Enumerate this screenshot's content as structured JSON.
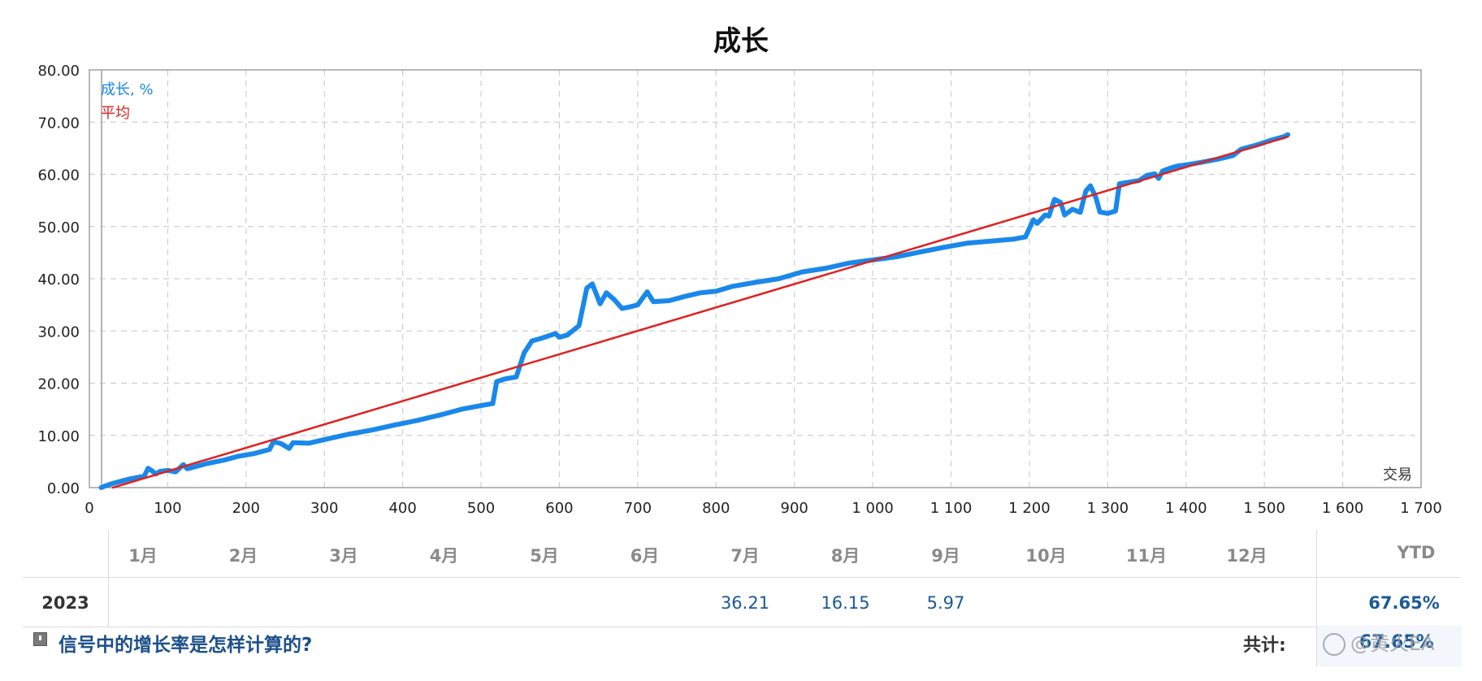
{
  "chart_data": {
    "type": "line",
    "title": "成长",
    "xlabel": "交易",
    "ylabel": "",
    "xlim": [
      0,
      1700
    ],
    "ylim": [
      0,
      80
    ],
    "x_ticks": [
      0,
      100,
      200,
      300,
      400,
      500,
      600,
      700,
      800,
      900,
      1000,
      1100,
      1200,
      1300,
      1400,
      1500,
      1600,
      1700
    ],
    "x_tick_labels": [
      "0",
      "100",
      "200",
      "300",
      "400",
      "500",
      "600",
      "700",
      "800",
      "900",
      "1 000",
      "1 100",
      "1 200",
      "1 300",
      "1 400",
      "1 500",
      "1 600",
      "1 700"
    ],
    "y_ticks": [
      0,
      10,
      20,
      30,
      40,
      50,
      60,
      70,
      80
    ],
    "y_tick_labels": [
      "0.00",
      "10.00",
      "20.00",
      "30.00",
      "40.00",
      "50.00",
      "60.00",
      "70.00",
      "80.00"
    ],
    "grid": true,
    "legend_position": "top-left",
    "series": [
      {
        "name": "成长, %",
        "color": "#1a88ea",
        "points": [
          [
            15,
            0
          ],
          [
            20,
            0.3
          ],
          [
            30,
            0.8
          ],
          [
            40,
            1.2
          ],
          [
            50,
            1.6
          ],
          [
            60,
            1.9
          ],
          [
            70,
            2.2
          ],
          [
            75,
            3.7
          ],
          [
            80,
            3.2
          ],
          [
            85,
            2.6
          ],
          [
            90,
            3.1
          ],
          [
            100,
            3.3
          ],
          [
            110,
            3.0
          ],
          [
            115,
            3.7
          ],
          [
            120,
            4.4
          ],
          [
            125,
            3.6
          ],
          [
            135,
            4.0
          ],
          [
            150,
            4.6
          ],
          [
            170,
            5.2
          ],
          [
            190,
            6.0
          ],
          [
            210,
            6.5
          ],
          [
            230,
            7.3
          ],
          [
            235,
            8.8
          ],
          [
            245,
            8.4
          ],
          [
            255,
            7.5
          ],
          [
            260,
            8.6
          ],
          [
            280,
            8.5
          ],
          [
            300,
            9.2
          ],
          [
            330,
            10.2
          ],
          [
            360,
            11.0
          ],
          [
            390,
            12.0
          ],
          [
            420,
            12.9
          ],
          [
            450,
            14.0
          ],
          [
            475,
            15.0
          ],
          [
            500,
            15.7
          ],
          [
            515,
            16.1
          ],
          [
            520,
            20.3
          ],
          [
            530,
            20.8
          ],
          [
            545,
            21.2
          ],
          [
            555,
            25.8
          ],
          [
            565,
            28.1
          ],
          [
            575,
            28.5
          ],
          [
            595,
            29.5
          ],
          [
            600,
            28.8
          ],
          [
            610,
            29.2
          ],
          [
            625,
            31.0
          ],
          [
            635,
            38.2
          ],
          [
            642,
            39.0
          ],
          [
            652,
            35.2
          ],
          [
            660,
            37.3
          ],
          [
            670,
            36.0
          ],
          [
            680,
            34.3
          ],
          [
            690,
            34.6
          ],
          [
            700,
            35.0
          ],
          [
            712,
            37.5
          ],
          [
            720,
            35.6
          ],
          [
            740,
            35.8
          ],
          [
            760,
            36.6
          ],
          [
            780,
            37.3
          ],
          [
            800,
            37.6
          ],
          [
            820,
            38.5
          ],
          [
            850,
            39.3
          ],
          [
            880,
            40.0
          ],
          [
            910,
            41.3
          ],
          [
            940,
            42.0
          ],
          [
            970,
            43.0
          ],
          [
            1000,
            43.6
          ],
          [
            1030,
            44.2
          ],
          [
            1060,
            45.1
          ],
          [
            1090,
            46.0
          ],
          [
            1120,
            46.8
          ],
          [
            1150,
            47.2
          ],
          [
            1180,
            47.6
          ],
          [
            1195,
            48.0
          ],
          [
            1205,
            51.3
          ],
          [
            1210,
            50.6
          ],
          [
            1220,
            52.2
          ],
          [
            1225,
            52.0
          ],
          [
            1232,
            55.2
          ],
          [
            1240,
            54.6
          ],
          [
            1245,
            52.2
          ],
          [
            1255,
            53.3
          ],
          [
            1265,
            52.7
          ],
          [
            1272,
            56.8
          ],
          [
            1278,
            57.8
          ],
          [
            1285,
            55.5
          ],
          [
            1290,
            52.8
          ],
          [
            1300,
            52.5
          ],
          [
            1310,
            53.0
          ],
          [
            1315,
            58.2
          ],
          [
            1340,
            58.8
          ],
          [
            1350,
            59.8
          ],
          [
            1360,
            60.1
          ],
          [
            1365,
            59.2
          ],
          [
            1370,
            60.6
          ],
          [
            1380,
            61.2
          ],
          [
            1390,
            61.6
          ],
          [
            1400,
            61.8
          ],
          [
            1420,
            62.3
          ],
          [
            1440,
            62.9
          ],
          [
            1460,
            63.6
          ],
          [
            1470,
            64.8
          ],
          [
            1490,
            65.6
          ],
          [
            1510,
            66.6
          ],
          [
            1525,
            67.2
          ],
          [
            1530,
            67.6
          ]
        ]
      },
      {
        "name": "平均",
        "color": "#e02020",
        "points": [
          [
            30,
            0
          ],
          [
            1530,
            67.2
          ]
        ]
      }
    ]
  },
  "table": {
    "months": [
      "1月",
      "2月",
      "3月",
      "4月",
      "5月",
      "6月",
      "7月",
      "8月",
      "9月",
      "10月",
      "11月",
      "12月"
    ],
    "ytd_header": "YTD",
    "rows": [
      {
        "year": "2023",
        "values": [
          "",
          "",
          "",
          "",
          "",
          "",
          "36.21",
          "16.15",
          "5.97",
          "",
          "",
          ""
        ],
        "ytd": "67.65%"
      }
    ]
  },
  "footer": {
    "help_link": "信号中的增长率是怎样计算的?",
    "total_label": "共计:",
    "total_value": "67.65%"
  },
  "watermark": {
    "text": "@黄火EA"
  }
}
